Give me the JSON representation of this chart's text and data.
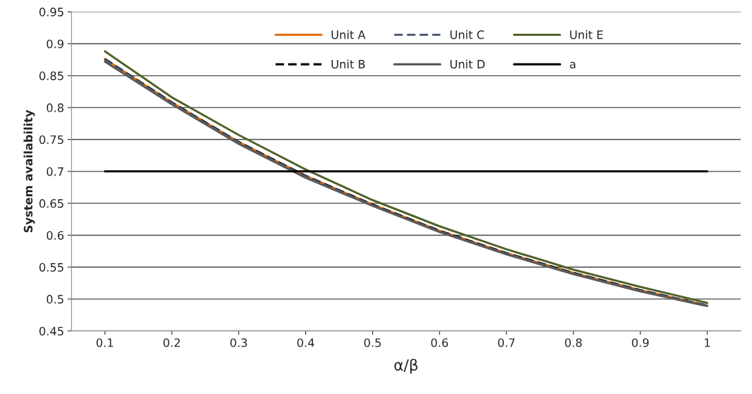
{
  "chart_data": {
    "type": "line",
    "xlabel": "α/β",
    "ylabel": "System availability",
    "categories": [
      "0.1",
      "0.2",
      "0.3",
      "0.4",
      "0.5",
      "0.6",
      "0.7",
      "0.8",
      "0.9",
      "1"
    ],
    "series": [
      {
        "name": "Unit A",
        "color": "#e36c09",
        "line_style": "solid",
        "values": [
          0.876,
          0.808,
          0.746,
          0.693,
          0.648,
          0.607,
          0.572,
          0.541,
          0.514,
          0.49
        ]
      },
      {
        "name": "Unit B",
        "color": "#000000",
        "line_style": "dashed",
        "values": [
          0.876,
          0.808,
          0.746,
          0.693,
          0.648,
          0.607,
          0.572,
          0.541,
          0.514,
          0.49
        ]
      },
      {
        "name": "Unit C",
        "color": "#4f5b73",
        "line_style": "dashed",
        "values": [
          0.875,
          0.807,
          0.745,
          0.692,
          0.647,
          0.606,
          0.571,
          0.54,
          0.513,
          0.49
        ]
      },
      {
        "name": "Unit D",
        "color": "#5a5a5a",
        "line_style": "solid",
        "values": [
          0.872,
          0.805,
          0.743,
          0.69,
          0.646,
          0.605,
          0.57,
          0.539,
          0.512,
          0.489
        ]
      },
      {
        "name": "Unit E",
        "color": "#4f6228",
        "line_style": "solid",
        "values": [
          0.888,
          0.816,
          0.757,
          0.703,
          0.655,
          0.614,
          0.578,
          0.546,
          0.519,
          0.494
        ]
      },
      {
        "name": "a",
        "color": "#000000",
        "line_style": "solid",
        "values": [
          0.7,
          0.7,
          0.7,
          0.7,
          0.7,
          0.7,
          0.7,
          0.7,
          0.7,
          0.7
        ]
      }
    ],
    "ylim": [
      0.45,
      0.95
    ],
    "yticks": [
      0.45,
      0.5,
      0.55,
      0.6,
      0.65,
      0.7,
      0.75,
      0.8,
      0.85,
      0.9,
      0.95
    ],
    "grid": "y",
    "legend": "top",
    "marker": "none"
  }
}
